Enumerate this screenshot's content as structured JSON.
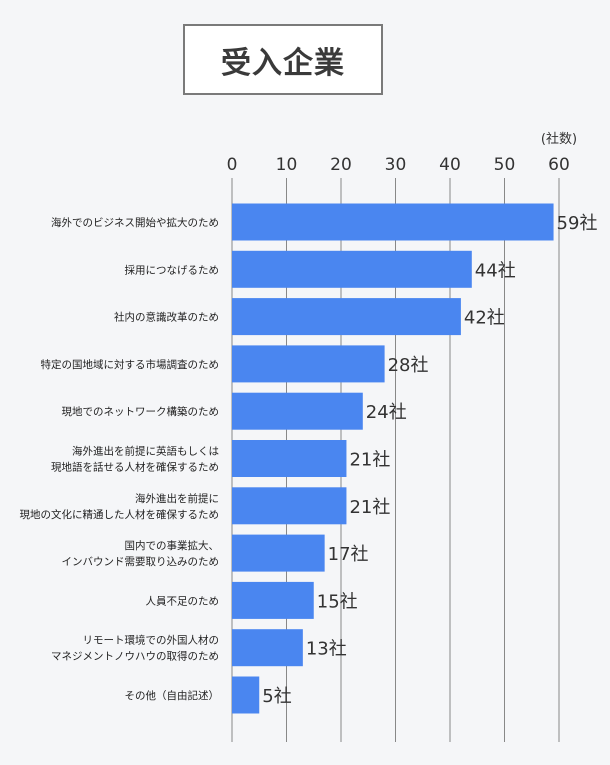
{
  "title": "受入企業",
  "chart_data": {
    "type": "bar",
    "orientation": "horizontal",
    "unit_label": "(社数)",
    "value_suffix": "社",
    "xlim": [
      0,
      60
    ],
    "ticks": [
      0,
      10,
      20,
      30,
      40,
      50,
      60
    ],
    "grid": true,
    "categories": [
      [
        "海外でのビジネス開始や拡大のため"
      ],
      [
        "採用につなげるため"
      ],
      [
        "社内の意識改革のため"
      ],
      [
        "特定の国地域に対する市場調査のため"
      ],
      [
        "現地でのネットワーク構築のため"
      ],
      [
        "海外進出を前提に英語もしくは",
        "現地語を話せる人材を確保するため"
      ],
      [
        "海外進出を前提に",
        "現地の文化に精通した人材を確保するため"
      ],
      [
        "国内での事業拡大、",
        "インバウンド需要取り込みのため"
      ],
      [
        "人員不足のため"
      ],
      [
        "リモート環境での外国人材の",
        "マネジメントノウハウの取得のため"
      ],
      [
        "その他（自由記述）"
      ]
    ],
    "values": [
      59,
      44,
      42,
      28,
      24,
      21,
      21,
      17,
      15,
      13,
      5
    ],
    "colors": {
      "bar": "#4a86f0",
      "grid": "#888888"
    }
  }
}
